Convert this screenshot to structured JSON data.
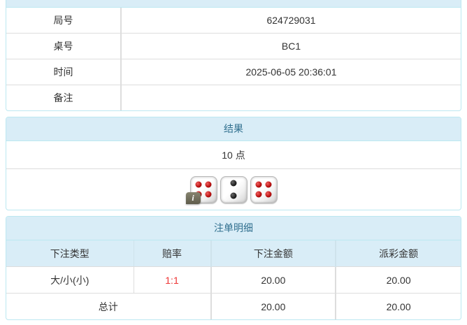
{
  "colors": {
    "panel_border": "#bce8f1",
    "heading_bg": "#d9edf7",
    "heading_text": "#31708f",
    "cell_border": "#dddddd",
    "body_text": "#333333",
    "odds_red": "#ee3333",
    "die_pip_red": "#bb1111",
    "die_pip_black": "#111111",
    "info_badge_bg": "#6e6b59"
  },
  "game_info": {
    "rows": [
      {
        "label": "局号",
        "value": "624729031"
      },
      {
        "label": "桌号",
        "value": "BC1"
      },
      {
        "label": "时间",
        "value": "2025-06-05 20:36:01"
      },
      {
        "label": "备注",
        "value": ""
      }
    ]
  },
  "result": {
    "title": "结果",
    "points": "10 点",
    "dice": [
      {
        "value": 4,
        "pip_color": "red"
      },
      {
        "value": 2,
        "pip_color": "black"
      },
      {
        "value": 4,
        "pip_color": "red"
      }
    ],
    "dice_total": 10,
    "info_badge_label": "i"
  },
  "bets": {
    "title": "注单明细",
    "columns": [
      "下注类型",
      "赔率",
      "下注金额",
      "派彩金额"
    ],
    "rows": [
      {
        "bet_type": "大/小(小)",
        "odds": "1:1",
        "bet_amount": "20.00",
        "payout_amount": "20.00"
      }
    ],
    "total": {
      "label": "总计",
      "bet_amount": "20.00",
      "payout_amount": "20.00"
    }
  }
}
